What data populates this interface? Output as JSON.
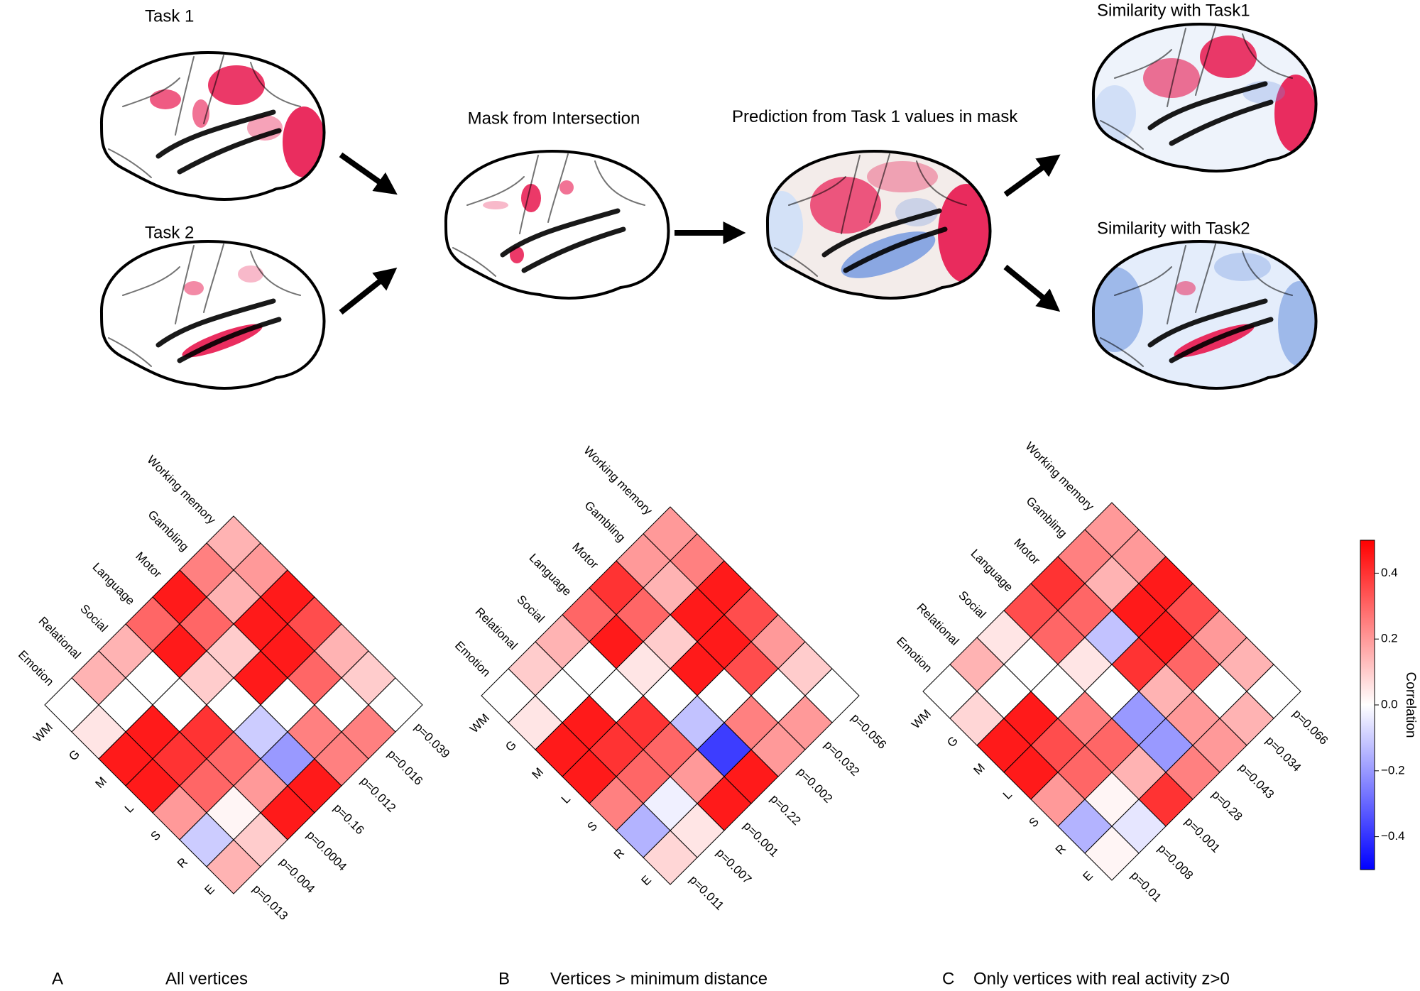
{
  "figure_labels": {
    "task1": "Task 1",
    "task2": "Task 2",
    "mask": "Mask from Intersection",
    "prediction": "Prediction from Task 1 values in mask",
    "similarity1": "Similarity with Task1",
    "similarity2": "Similarity with Task2"
  },
  "chart_data": [
    {
      "type": "heatmap",
      "panel": "A",
      "title": "All vertices",
      "rows": [
        "Working memory",
        "Gambling",
        "Motor",
        "Language",
        "Social",
        "Relational",
        "Emotion"
      ],
      "columns": [
        "WM",
        "G",
        "M",
        "L",
        "S",
        "R",
        "E"
      ],
      "values": [
        [
          0.15,
          0.2,
          0.45,
          0.35,
          0.15,
          0.1,
          0.0
        ],
        [
          0.25,
          0.15,
          0.45,
          0.45,
          0.3,
          0.0,
          0.25
        ],
        [
          0.45,
          0.3,
          0.1,
          0.45,
          0.0,
          0.25,
          0.25
        ],
        [
          0.3,
          0.45,
          0.1,
          0.0,
          -0.1,
          -0.2,
          0.45
        ],
        [
          0.15,
          0.0,
          0.0,
          0.4,
          0.3,
          0.2,
          0.45
        ],
        [
          0.15,
          0.0,
          0.45,
          0.4,
          0.3,
          0.02,
          0.1
        ],
        [
          0.0,
          0.05,
          0.45,
          0.45,
          0.2,
          -0.1,
          0.15
        ]
      ],
      "row_annotations": [
        "p=0.039",
        "p=0.016",
        "p=0.012",
        "p=0.16",
        "p=0.0004",
        "p=0.004",
        "p=0.013"
      ]
    },
    {
      "type": "heatmap",
      "panel": "B",
      "title": "Vertices > minimum distance",
      "rows": [
        "Working memory",
        "Gambling",
        "Motor",
        "Language",
        "Social",
        "Relational",
        "Emotion"
      ],
      "columns": [
        "WM",
        "G",
        "M",
        "L",
        "S",
        "R",
        "E"
      ],
      "values": [
        [
          0.2,
          0.25,
          0.45,
          0.35,
          0.2,
          0.1,
          0.0
        ],
        [
          0.2,
          0.15,
          0.45,
          0.45,
          0.35,
          0.0,
          0.2
        ],
        [
          0.4,
          0.3,
          0.1,
          0.45,
          0.0,
          0.25,
          0.2
        ],
        [
          0.3,
          0.45,
          0.05,
          0.0,
          -0.12,
          -0.38,
          0.45
        ],
        [
          0.15,
          0.0,
          0.0,
          0.4,
          0.3,
          0.2,
          0.45
        ],
        [
          0.1,
          0.0,
          0.45,
          0.4,
          0.3,
          -0.03,
          0.05
        ],
        [
          0.0,
          0.05,
          0.45,
          0.45,
          0.25,
          -0.15,
          0.08
        ]
      ],
      "row_annotations": [
        "p=0.056",
        "p=0.032",
        "p=0.002",
        "p=0.22",
        "p=0.001",
        "p=0.007",
        "p=0.011"
      ]
    },
    {
      "type": "heatmap",
      "panel": "C",
      "title": "Only vertices with real activity z>0",
      "rows": [
        "Working memory",
        "Gambling",
        "Motor",
        "Language",
        "Social",
        "Relational",
        "Emotion"
      ],
      "columns": [
        "WM",
        "G",
        "M",
        "L",
        "S",
        "R",
        "E"
      ],
      "values": [
        [
          0.2,
          0.2,
          0.45,
          0.35,
          0.2,
          0.15,
          0.0
        ],
        [
          0.25,
          0.15,
          0.45,
          0.45,
          0.3,
          0.0,
          0.15
        ],
        [
          0.4,
          0.3,
          -0.12,
          0.4,
          0.15,
          0.2,
          0.2
        ],
        [
          0.35,
          0.3,
          0.05,
          0.0,
          -0.2,
          -0.2,
          0.25
        ],
        [
          0.05,
          0.0,
          0.0,
          0.25,
          0.3,
          0.15,
          0.4
        ],
        [
          0.15,
          0.0,
          0.45,
          0.35,
          0.3,
          0.02,
          -0.05
        ],
        [
          0.0,
          0.08,
          0.45,
          0.45,
          0.2,
          -0.15,
          0.02
        ]
      ],
      "row_annotations": [
        "p=0.066",
        "p=0.034",
        "p=0.043",
        "p=0.28",
        "p=0.001",
        "p=0.008",
        "p=0.01"
      ]
    }
  ],
  "colorbar": {
    "label": "Correlation",
    "lim": [
      -0.5,
      0.5
    ],
    "ticks": [
      {
        "value": -0.4,
        "label": "−0.4"
      },
      {
        "value": -0.2,
        "label": "−0.2"
      },
      {
        "value": 0.0,
        "label": "0.0"
      },
      0.2,
      0.4
    ],
    "colormap": [
      "#0000ff",
      "#ffffff",
      "#ff0000"
    ]
  }
}
